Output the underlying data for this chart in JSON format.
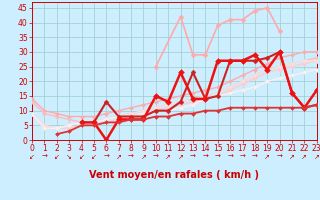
{
  "xlabel": "Vent moyen/en rafales ( km/h )",
  "xlim": [
    0,
    23
  ],
  "ylim": [
    0,
    47
  ],
  "yticks": [
    0,
    5,
    10,
    15,
    20,
    25,
    30,
    35,
    40,
    45
  ],
  "xticks": [
    0,
    1,
    2,
    3,
    4,
    5,
    6,
    7,
    8,
    9,
    10,
    11,
    12,
    13,
    14,
    15,
    16,
    17,
    18,
    19,
    20,
    21,
    22,
    23
  ],
  "bg_color": "#cceeff",
  "grid_color": "#99cccc",
  "series": [
    {
      "x": [
        0,
        1,
        2,
        3,
        4,
        5,
        6,
        7,
        8,
        9,
        10,
        11,
        12,
        13,
        14,
        15,
        16,
        17,
        18,
        19,
        20,
        21,
        22,
        23
      ],
      "y": [
        14,
        10,
        9,
        8,
        8,
        8,
        9,
        10,
        11,
        12,
        13,
        14,
        15,
        16,
        17,
        18,
        20,
        22,
        24,
        26,
        28,
        29,
        30,
        30
      ],
      "color": "#ffaaaa",
      "lw": 1.0,
      "marker": "D",
      "ms": 2.0
    },
    {
      "x": [
        0,
        1,
        2,
        3,
        4,
        5,
        6,
        7,
        8,
        9,
        10,
        11,
        12,
        13,
        14,
        15,
        16,
        17,
        18,
        19,
        20,
        21,
        22,
        23
      ],
      "y": [
        13,
        9,
        8,
        7,
        6,
        6,
        7,
        8,
        9,
        10,
        11,
        12,
        13,
        14,
        15,
        16,
        18,
        20,
        22,
        24,
        25,
        26,
        27,
        28
      ],
      "color": "#ffbbbb",
      "lw": 1.0,
      "marker": "D",
      "ms": 2.0
    },
    {
      "x": [
        0,
        1,
        2,
        3,
        4,
        5,
        6,
        7,
        8,
        9,
        10,
        11,
        12,
        13,
        14,
        15,
        16,
        17,
        18,
        19,
        20,
        21,
        22,
        23
      ],
      "y": [
        9,
        4,
        4,
        4,
        5,
        5,
        6,
        7,
        8,
        9,
        10,
        11,
        12,
        13,
        14,
        15,
        17,
        19,
        21,
        23,
        24,
        25,
        26,
        27
      ],
      "color": "#ffcccc",
      "lw": 1.0,
      "marker": "D",
      "ms": 2.0
    },
    {
      "x": [
        0,
        1,
        2,
        3,
        4,
        5,
        6,
        7,
        8,
        9,
        10,
        11,
        12,
        13,
        14,
        15,
        16,
        17,
        18,
        19,
        20,
        21,
        22,
        23
      ],
      "y": [
        9,
        5,
        4,
        5,
        6,
        6,
        7,
        8,
        9,
        10,
        11,
        12,
        13,
        14,
        15,
        16,
        18,
        20,
        22,
        24,
        25,
        26,
        27,
        27
      ],
      "color": "#ffdddd",
      "lw": 1.0,
      "marker": "D",
      "ms": 2.0
    },
    {
      "x": [
        0,
        1,
        2,
        3,
        4,
        5,
        6,
        7,
        8,
        9,
        10,
        11,
        12,
        13,
        14,
        15,
        16,
        17,
        18,
        19,
        20,
        21,
        22,
        23
      ],
      "y": [
        9,
        4,
        4,
        5,
        6,
        6,
        7,
        8,
        8,
        9,
        10,
        10,
        11,
        12,
        14,
        15,
        16,
        17,
        18,
        20,
        21,
        22,
        23,
        24
      ],
      "color": "#ffeeee",
      "lw": 1.0,
      "marker": "D",
      "ms": 2.0
    },
    {
      "x": [
        5,
        6,
        7,
        8,
        9,
        10,
        11,
        12,
        13,
        14,
        15,
        16,
        17,
        18,
        19,
        20,
        21,
        22,
        23
      ],
      "y": [
        6,
        13,
        8,
        8,
        8,
        10,
        10,
        13,
        23,
        14,
        15,
        27,
        27,
        27,
        28,
        30,
        16,
        11,
        12
      ],
      "color": "#cc2222",
      "lw": 1.5,
      "marker": "D",
      "ms": 2.5
    },
    {
      "x": [
        4,
        5,
        6,
        7,
        8,
        9,
        10,
        11,
        12,
        13,
        14,
        15,
        16,
        17,
        18,
        19,
        20,
        21,
        22,
        23
      ],
      "y": [
        6,
        6,
        0,
        7,
        7,
        7,
        15,
        13,
        23,
        14,
        14,
        27,
        27,
        27,
        29,
        24,
        30,
        16,
        11,
        17
      ],
      "color": "#ee1111",
      "lw": 1.8,
      "marker": "D",
      "ms": 3.0
    },
    {
      "x": [
        2,
        3,
        4,
        5,
        6,
        7,
        8,
        9,
        10,
        11,
        12,
        13,
        14,
        15,
        16,
        17,
        18,
        19,
        20,
        21,
        22,
        23
      ],
      "y": [
        2,
        3,
        5,
        5,
        6,
        6,
        7,
        7,
        8,
        8,
        9,
        9,
        10,
        10,
        11,
        11,
        11,
        11,
        11,
        11,
        11,
        12
      ],
      "color": "#dd3333",
      "lw": 1.3,
      "marker": "D",
      "ms": 2.0
    },
    {
      "x": [
        10,
        12,
        13,
        14,
        15,
        16,
        17,
        18,
        19,
        20
      ],
      "y": [
        25,
        42,
        29,
        29,
        39,
        41,
        41,
        44,
        45,
        37
      ],
      "color": "#ffaaaa",
      "lw": 1.2,
      "marker": "D",
      "ms": 2.5
    }
  ],
  "arrows": [
    "↙",
    "→",
    "↙",
    "↘",
    "↙",
    "↙",
    "→",
    "↗",
    "→",
    "↗",
    "→",
    "↗",
    "↗",
    "→",
    "→",
    "→",
    "→",
    "→",
    "→",
    "↗",
    "→",
    "↗",
    "↗",
    "↗"
  ],
  "xlabel_color": "#cc0000",
  "xlabel_fontsize": 7,
  "tick_color": "#cc0000",
  "tick_fontsize": 5.5,
  "arrow_fontsize": 5
}
